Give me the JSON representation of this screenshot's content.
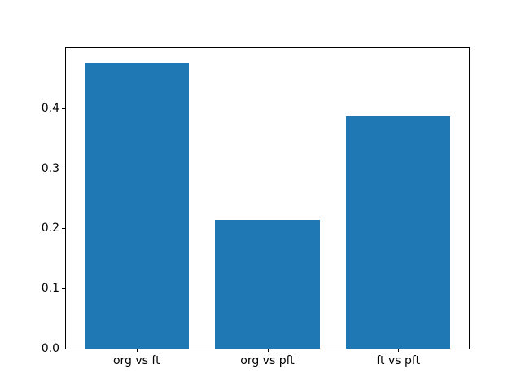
{
  "chart_data": {
    "type": "bar",
    "categories": [
      "org vs ft",
      "org vs pft",
      "ft vs pft"
    ],
    "values": [
      0.476,
      0.214,
      0.386
    ],
    "bar_color": "#1f77b4",
    "xlabel": "",
    "ylabel": "",
    "yticks": [
      0.0,
      0.1,
      0.2,
      0.3,
      0.4
    ],
    "ytick_labels": [
      "0.0",
      "0.1",
      "0.2",
      "0.3",
      "0.4"
    ],
    "ylim": [
      0,
      0.5
    ],
    "xlim": [
      -0.54,
      2.54
    ],
    "bar_width": 0.8,
    "grid": false,
    "legend": "none",
    "spine_color": "#000000",
    "background_color": "#ffffff"
  }
}
